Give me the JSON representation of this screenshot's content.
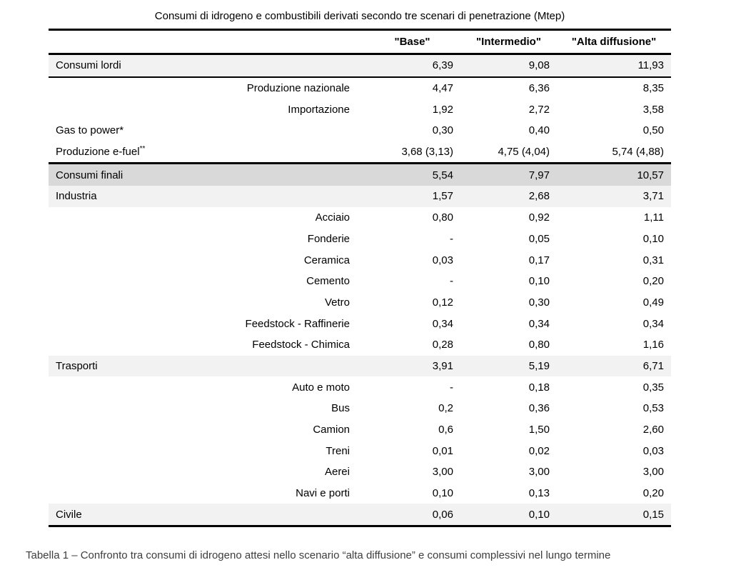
{
  "table": {
    "title": "Consumi di idrogeno e combustibili derivati secondo tre scenari di penetrazione (Mtep)",
    "columns": [
      "\"Base\"",
      "\"Intermedio\"",
      "\"Alta diffusione\""
    ],
    "rows": [
      {
        "label": "Consumi lordi",
        "sup": "",
        "indent": "main",
        "shade": "light",
        "rule": "below",
        "values": [
          "6,39",
          "9,08",
          "11,93"
        ]
      },
      {
        "label": "Produzione nazionale",
        "sup": "",
        "indent": "sub",
        "shade": "none",
        "rule": "",
        "values": [
          "4,47",
          "6,36",
          "8,35"
        ]
      },
      {
        "label": "Importazione",
        "sup": "",
        "indent": "sub",
        "shade": "none",
        "rule": "",
        "values": [
          "1,92",
          "2,72",
          "3,58"
        ]
      },
      {
        "label": "Gas to power*",
        "sup": "",
        "indent": "main",
        "shade": "none",
        "rule": "",
        "values": [
          "0,30",
          "0,40",
          "0,50"
        ]
      },
      {
        "label": "Produzione e-fuel",
        "sup": "**",
        "indent": "main",
        "shade": "none",
        "rule": "below-thick",
        "values": [
          "3,68 (3,13)",
          "4,75 (4,04)",
          "5,74 (4,88)"
        ]
      },
      {
        "label": "Consumi finali",
        "sup": "",
        "indent": "main",
        "shade": "dark",
        "rule": "",
        "values": [
          "5,54",
          "7,97",
          "10,57"
        ]
      },
      {
        "label": "Industria",
        "sup": "",
        "indent": "main",
        "shade": "light",
        "rule": "",
        "values": [
          "1,57",
          "2,68",
          "3,71"
        ]
      },
      {
        "label": "Acciaio",
        "sup": "",
        "indent": "sub",
        "shade": "none",
        "rule": "",
        "values": [
          "0,80",
          "0,92",
          "1,11"
        ]
      },
      {
        "label": "Fonderie",
        "sup": "",
        "indent": "sub",
        "shade": "none",
        "rule": "",
        "values": [
          "-",
          "0,05",
          "0,10"
        ]
      },
      {
        "label": "Ceramica",
        "sup": "",
        "indent": "sub",
        "shade": "none",
        "rule": "",
        "values": [
          "0,03",
          "0,17",
          "0,31"
        ]
      },
      {
        "label": "Cemento",
        "sup": "",
        "indent": "sub",
        "shade": "none",
        "rule": "",
        "values": [
          "-",
          "0,10",
          "0,20"
        ]
      },
      {
        "label": "Vetro",
        "sup": "",
        "indent": "sub",
        "shade": "none",
        "rule": "",
        "values": [
          "0,12",
          "0,30",
          "0,49"
        ]
      },
      {
        "label": "Feedstock - Raffinerie",
        "sup": "",
        "indent": "sub",
        "shade": "none",
        "rule": "",
        "values": [
          "0,34",
          "0,34",
          "0,34"
        ]
      },
      {
        "label": "Feedstock - Chimica",
        "sup": "",
        "indent": "sub",
        "shade": "none",
        "rule": "",
        "values": [
          "0,28",
          "0,80",
          "1,16"
        ]
      },
      {
        "label": "Trasporti",
        "sup": "",
        "indent": "main",
        "shade": "light",
        "rule": "",
        "values": [
          "3,91",
          "5,19",
          "6,71"
        ]
      },
      {
        "label": "Auto e moto",
        "sup": "",
        "indent": "sub",
        "shade": "none",
        "rule": "",
        "values": [
          "-",
          "0,18",
          "0,35"
        ]
      },
      {
        "label": "Bus",
        "sup": "",
        "indent": "sub",
        "shade": "none",
        "rule": "",
        "values": [
          "0,2",
          "0,36",
          "0,53"
        ]
      },
      {
        "label": "Camion",
        "sup": "",
        "indent": "sub",
        "shade": "none",
        "rule": "",
        "values": [
          "0,6",
          "1,50",
          "2,60"
        ]
      },
      {
        "label": "Treni",
        "sup": "",
        "indent": "sub",
        "shade": "none",
        "rule": "",
        "values": [
          "0,01",
          "0,02",
          "0,03"
        ]
      },
      {
        "label": "Aerei",
        "sup": "",
        "indent": "sub",
        "shade": "none",
        "rule": "",
        "values": [
          "3,00",
          "3,00",
          "3,00"
        ]
      },
      {
        "label": "Navi e porti",
        "sup": "",
        "indent": "sub",
        "shade": "none",
        "rule": "",
        "values": [
          "0,10",
          "0,13",
          "0,20"
        ]
      },
      {
        "label": "Civile",
        "sup": "",
        "indent": "main",
        "shade": "light",
        "rule": "below-thick",
        "values": [
          "0,06",
          "0,10",
          "0,15"
        ]
      }
    ]
  },
  "caption": "Tabella 1 – Confronto tra consumi di idrogeno attesi nello scenario “alta diffusione” e consumi complessivi nel lungo termine",
  "colors": {
    "shade_light": "#f2f2f2",
    "shade_dark": "#d9d9d9",
    "rule": "#000000",
    "caption_text": "#3d3d3d"
  }
}
